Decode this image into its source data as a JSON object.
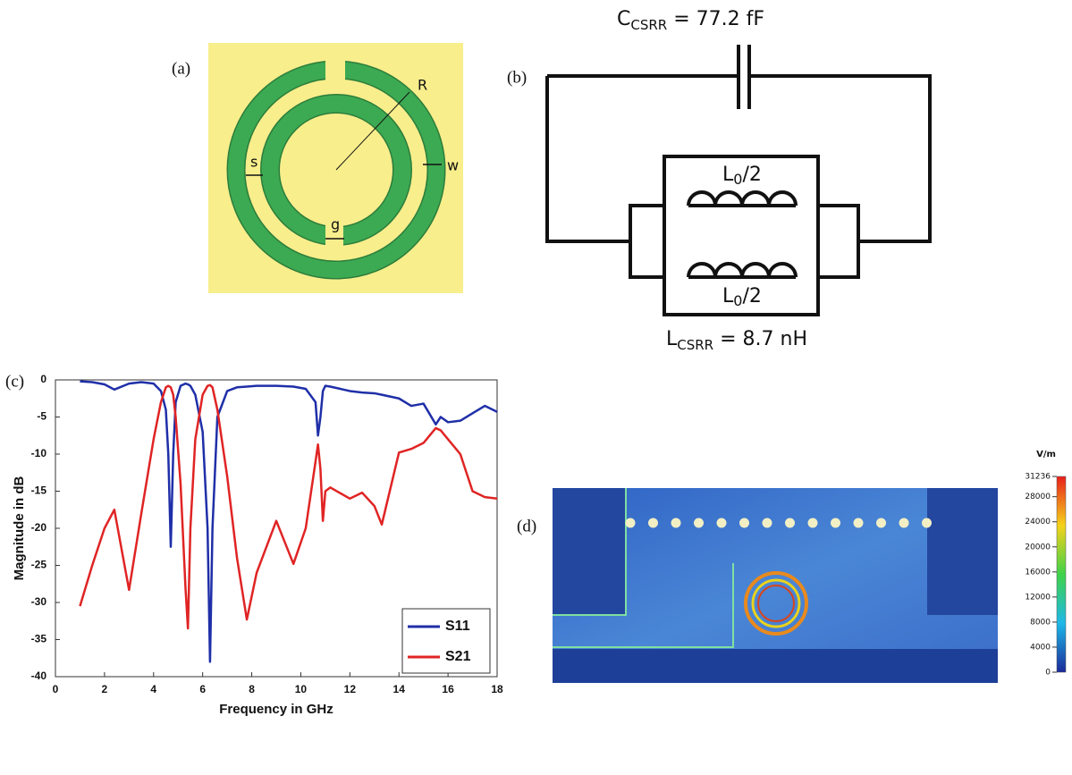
{
  "panel_a": {
    "label": "(a)",
    "annotations": [
      "R",
      "s",
      "g",
      "w"
    ]
  },
  "panel_b": {
    "label": "(b)",
    "capacitor": {
      "symbol": "C",
      "subscript": "CSRR",
      "value": " = 77.2 fF"
    },
    "inductors": [
      {
        "symbol": "L",
        "subscript": "0",
        "rest": "/2"
      },
      {
        "symbol": "L",
        "subscript": "0",
        "rest": "/2"
      }
    ],
    "inductance": {
      "symbol": "L",
      "subscript": "CSRR",
      "value": " = 8.7 nH"
    }
  },
  "chart_data": {
    "type": "line",
    "panel_label": "(c)",
    "xlabel": "Frequency in GHz",
    "ylabel": "Magnitude  in dB",
    "x": [
      1,
      1.5,
      2,
      2.4,
      3,
      3.5,
      4,
      4.3,
      4.5,
      4.6,
      4.7,
      4.8,
      4.9,
      5.1,
      5.3,
      5.4,
      5.5,
      5.7,
      6,
      6.2,
      6.3,
      6.4,
      6.6,
      7,
      7.4,
      7.8,
      8.2,
      9,
      9.7,
      10.2,
      10.6,
      10.7,
      10.8,
      10.9,
      11,
      11.2,
      12,
      12.5,
      13,
      13.3,
      14,
      14.5,
      15,
      15.5,
      15.7,
      16,
      16.5,
      17,
      17.5,
      18
    ],
    "series": [
      {
        "name": "S11",
        "color": "#1f2fa8",
        "values": [
          -0.2,
          -0.3,
          -0.6,
          -1.3,
          -0.5,
          -0.3,
          -0.5,
          -1.5,
          -4,
          -10,
          -22.5,
          -10,
          -3,
          -0.8,
          -0.5,
          -0.6,
          -0.8,
          -2,
          -7,
          -20,
          -38,
          -20,
          -5,
          -1.5,
          -1,
          -0.9,
          -0.8,
          -0.8,
          -0.9,
          -1.2,
          -3,
          -7.5,
          -5,
          -1.5,
          -0.8,
          -0.9,
          -1.5,
          -1.7,
          -1.8,
          -2,
          -2.5,
          -3.5,
          -3.2,
          -6,
          -5,
          -5.7,
          -5.5,
          -4.5,
          -3.5,
          -4.3
        ]
      },
      {
        "name": "S21",
        "color": "#e02424",
        "values": [
          -30.5,
          -25,
          -20,
          -17.5,
          -28.3,
          -18,
          -8,
          -3,
          -1,
          -0.8,
          -1,
          -2,
          -5,
          -14,
          -28,
          -33.5,
          -20,
          -8,
          -2,
          -0.8,
          -0.7,
          -1,
          -4,
          -13,
          -24,
          -32.3,
          -26,
          -19,
          -24.8,
          -20,
          -11,
          -8.7,
          -12,
          -19,
          -15,
          -14.5,
          -16,
          -15.2,
          -17,
          -19.5,
          -9.8,
          -9.3,
          -8.5,
          -6.5,
          -6.8,
          -8,
          -10,
          -15,
          -15.8,
          -16
        ]
      }
    ],
    "xlim": [
      0,
      18
    ],
    "xticks": [
      0,
      2,
      4,
      6,
      8,
      10,
      12,
      14,
      16,
      18
    ],
    "ylim": [
      -40,
      0
    ],
    "yticks": [
      0,
      -5,
      -10,
      -15,
      -20,
      -25,
      -30,
      -35,
      -40
    ],
    "legend": "lower right"
  },
  "panel_d": {
    "label": "(d)",
    "colorbar_unit": "V/m",
    "colorbar_ticks": [
      31236,
      28000,
      24000,
      20000,
      16000,
      12000,
      8000,
      4000,
      0
    ]
  }
}
